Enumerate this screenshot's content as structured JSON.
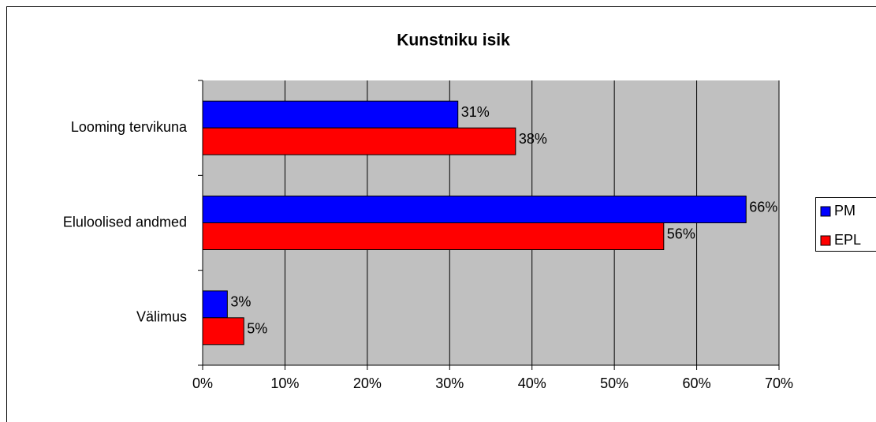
{
  "chart_data": {
    "type": "bar",
    "orientation": "horizontal",
    "title": "Kunstniku isik",
    "categories": [
      "Looming tervikuna",
      "Eluloolised andmed",
      "Välimus"
    ],
    "series": [
      {
        "name": "PM",
        "color": "#0000ff",
        "values": [
          31,
          66,
          3
        ],
        "value_labels": [
          "31%",
          "66%",
          "3%"
        ]
      },
      {
        "name": "EPL",
        "color": "#ff0000",
        "values": [
          38,
          56,
          5
        ],
        "value_labels": [
          "38%",
          "56%",
          "5%"
        ]
      }
    ],
    "xlim": [
      0,
      70
    ],
    "xticks": [
      {
        "value": 0,
        "label": "0%"
      },
      {
        "value": 10,
        "label": "10%"
      },
      {
        "value": 20,
        "label": "20%"
      },
      {
        "value": 30,
        "label": "30%"
      },
      {
        "value": 40,
        "label": "40%"
      },
      {
        "value": 50,
        "label": "50%"
      },
      {
        "value": 60,
        "label": "60%"
      },
      {
        "value": 70,
        "label": "70%"
      }
    ],
    "grid": true,
    "legend": "right",
    "plot_background": "#c0c0c0"
  }
}
